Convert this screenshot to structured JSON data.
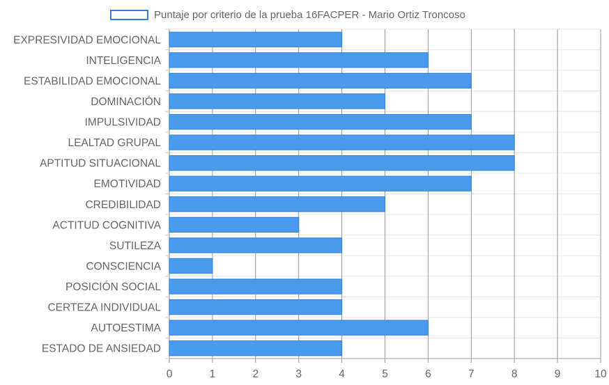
{
  "chart_data": {
    "type": "bar",
    "orientation": "horizontal",
    "title": "",
    "xlabel": "",
    "ylabel": "",
    "xlim": [
      0,
      10
    ],
    "x_ticks": [
      0,
      1,
      2,
      3,
      4,
      5,
      6,
      7,
      8,
      9,
      10
    ],
    "grid": true,
    "legend_position": "top",
    "categories": [
      "EXPRESIVIDAD EMOCIONAL",
      "INTELIGENCIA",
      "ESTABILIDAD EMOCIONAL",
      "DOMINACIÓN",
      "IMPULSIVIDAD",
      "LEALTAD GRUPAL",
      "APTITUD SITUACIONAL",
      "EMOTIVIDAD",
      "CREDIBILIDAD",
      "ACTITUD COGNITIVA",
      "SUTILEZA",
      "CONSCIENCIA",
      "POSICIÓN SOCIAL",
      "CERTEZA INDIVIDUAL",
      "AUTOESTIMA",
      "ESTADO DE ANSIEDAD"
    ],
    "series": [
      {
        "name": "Puntaje por criterio de la prueba 16FACPER - Mario Ortiz Troncoso",
        "values": [
          4,
          6,
          7,
          5,
          7,
          8,
          8,
          7,
          5,
          3,
          4,
          1,
          4,
          4,
          6,
          4
        ],
        "color": "#4a9aee",
        "border_color": "#2d7fe0"
      }
    ]
  }
}
